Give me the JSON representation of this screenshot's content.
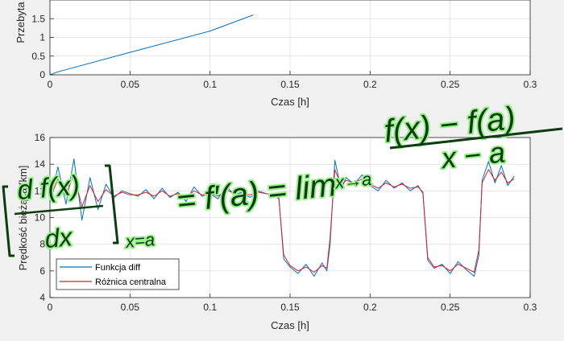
{
  "chart_data": [
    {
      "type": "line",
      "xlabel": "Czas [h]",
      "ylabel": "Przebyta",
      "xlim": [
        0,
        0.3
      ],
      "ylim": [
        0,
        2
      ],
      "xticks": [
        "0",
        "0.05",
        "0.1",
        "0.15",
        "0.2",
        "0.25",
        "0.3"
      ],
      "yticks": [
        "0",
        "0.5",
        "1",
        "1.5"
      ],
      "grid": true,
      "series": [
        {
          "color": "#0072bd",
          "x": [
            0,
            0.005,
            0.05,
            0.1,
            0.127
          ],
          "y": [
            0,
            0.08,
            0.6,
            1.17,
            1.6
          ]
        }
      ]
    },
    {
      "type": "line",
      "xlabel": "Czas [h]",
      "ylabel": "Prędkość bieżąca [km]",
      "xlim": [
        0,
        0.3
      ],
      "ylim": [
        4,
        16
      ],
      "xticks": [
        "0",
        "0.05",
        "0.1",
        "0.15",
        "0.2",
        "0.25",
        "0.3"
      ],
      "yticks": [
        "4",
        "6",
        "8",
        "10",
        "12",
        "14",
        "16"
      ],
      "grid": true,
      "legend_position": "bottom-left",
      "series": [
        {
          "name": "Funkcja diff",
          "color": "#0072bd",
          "x": [
            0,
            0.005,
            0.01,
            0.015,
            0.02,
            0.025,
            0.03,
            0.035,
            0.04,
            0.045,
            0.05,
            0.055,
            0.06,
            0.065,
            0.07,
            0.075,
            0.08,
            0.085,
            0.09,
            0.095,
            0.1,
            0.105,
            0.11,
            0.115,
            0.12,
            0.125,
            0.13,
            0.135,
            0.14,
            0.143,
            0.146,
            0.15,
            0.155,
            0.16,
            0.165,
            0.17,
            0.173,
            0.175,
            0.178,
            0.182,
            0.185,
            0.19,
            0.195,
            0.2,
            0.205,
            0.21,
            0.215,
            0.22,
            0.225,
            0.23,
            0.233,
            0.236,
            0.24,
            0.245,
            0.25,
            0.255,
            0.26,
            0.265,
            0.268,
            0.27,
            0.274,
            0.278,
            0.282,
            0.286,
            0.29
          ],
          "y": [
            11.2,
            13.8,
            11.0,
            14.4,
            9.8,
            13.0,
            10.6,
            12.5,
            11.5,
            12.0,
            11.8,
            11.6,
            12.1,
            11.4,
            12.2,
            11.5,
            11.9,
            11.2,
            12.3,
            11.6,
            11.8,
            11.4,
            12.4,
            11.7,
            11.9,
            11.5,
            12.0,
            11.8,
            11.7,
            11.5,
            6.9,
            6.3,
            5.8,
            6.5,
            5.6,
            6.6,
            6.0,
            8.0,
            14.3,
            12.1,
            13.0,
            12.5,
            13.2,
            12.4,
            12.0,
            12.8,
            12.2,
            12.6,
            12.0,
            12.4,
            11.8,
            6.8,
            6.2,
            6.5,
            5.8,
            6.7,
            6.1,
            5.6,
            7.2,
            12.8,
            14.2,
            12.6,
            13.9,
            12.4,
            13.1
          ]
        },
        {
          "name": "Różnica centralna",
          "color": "#d9212b",
          "x": [
            0,
            0.005,
            0.01,
            0.015,
            0.02,
            0.025,
            0.03,
            0.035,
            0.04,
            0.045,
            0.05,
            0.055,
            0.06,
            0.065,
            0.07,
            0.075,
            0.08,
            0.085,
            0.09,
            0.095,
            0.1,
            0.105,
            0.11,
            0.115,
            0.12,
            0.125,
            0.13,
            0.135,
            0.14,
            0.143,
            0.146,
            0.15,
            0.155,
            0.16,
            0.165,
            0.17,
            0.173,
            0.175,
            0.178,
            0.182,
            0.185,
            0.19,
            0.195,
            0.2,
            0.205,
            0.21,
            0.215,
            0.22,
            0.225,
            0.23,
            0.233,
            0.236,
            0.24,
            0.245,
            0.25,
            0.255,
            0.26,
            0.265,
            0.268,
            0.27,
            0.274,
            0.278,
            0.282,
            0.286,
            0.29
          ],
          "y": [
            11.4,
            12.9,
            11.6,
            13.3,
            10.8,
            12.4,
            11.2,
            12.1,
            11.6,
            11.9,
            11.7,
            11.7,
            11.9,
            11.6,
            12.0,
            11.6,
            11.8,
            11.5,
            12.0,
            11.7,
            11.8,
            11.6,
            12.1,
            11.8,
            11.8,
            11.7,
            11.9,
            11.8,
            11.7,
            11.4,
            7.2,
            6.4,
            6.0,
            6.3,
            5.9,
            6.4,
            6.2,
            8.5,
            13.6,
            12.4,
            12.8,
            12.6,
            12.9,
            12.5,
            12.2,
            12.6,
            12.3,
            12.5,
            12.2,
            12.3,
            11.9,
            7.0,
            6.3,
            6.4,
            6.0,
            6.5,
            6.2,
            5.9,
            7.6,
            12.6,
            13.6,
            12.8,
            13.4,
            12.6,
            12.9
          ]
        }
      ]
    }
  ],
  "overlay": {
    "lhs_num": "d f(x)",
    "lhs_den": "dx",
    "lhs_sub": "x=a",
    "eq1": "= f′(a) = lim",
    "lim_sub": "x→a",
    "rhs_num": "f(x) − f(a)",
    "rhs_den": "x − a"
  }
}
